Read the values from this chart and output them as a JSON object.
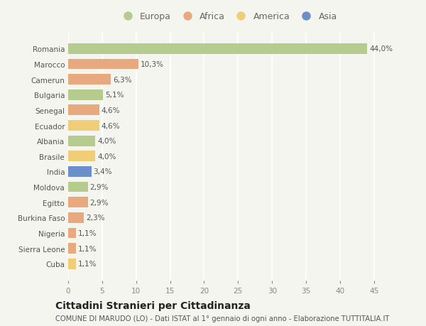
{
  "countries": [
    "Romania",
    "Marocco",
    "Camerun",
    "Bulgaria",
    "Senegal",
    "Ecuador",
    "Albania",
    "Brasile",
    "India",
    "Moldova",
    "Egitto",
    "Burkina Faso",
    "Nigeria",
    "Sierra Leone",
    "Cuba"
  ],
  "values": [
    44.0,
    10.3,
    6.3,
    5.1,
    4.6,
    4.6,
    4.0,
    4.0,
    3.4,
    2.9,
    2.9,
    2.3,
    1.1,
    1.1,
    1.1
  ],
  "labels": [
    "44,0%",
    "10,3%",
    "6,3%",
    "5,1%",
    "4,6%",
    "4,6%",
    "4,0%",
    "4,0%",
    "3,4%",
    "2,9%",
    "2,9%",
    "2,3%",
    "1,1%",
    "1,1%",
    "1,1%"
  ],
  "colors": [
    "#b5cc8e",
    "#e8a97e",
    "#e8a97e",
    "#b5cc8e",
    "#e8a97e",
    "#f0ce78",
    "#b5cc8e",
    "#f0ce78",
    "#6b8fc9",
    "#b5cc8e",
    "#e8a97e",
    "#e8a97e",
    "#e8a97e",
    "#e8a97e",
    "#f0ce78"
  ],
  "legend_labels": [
    "Europa",
    "Africa",
    "America",
    "Asia"
  ],
  "legend_colors": [
    "#b5cc8e",
    "#e8a97e",
    "#f0ce78",
    "#6b8fc9"
  ],
  "title": "Cittadini Stranieri per Cittadinanza",
  "subtitle": "COMUNE DI MARUDO (LO) - Dati ISTAT al 1° gennaio di ogni anno - Elaborazione TUTTITALIA.IT",
  "xlim": [
    0,
    47
  ],
  "xticks": [
    0,
    5,
    10,
    15,
    20,
    25,
    30,
    35,
    40,
    45
  ],
  "background_color": "#f5f5f0",
  "grid_color": "#ffffff",
  "bar_height": 0.68,
  "label_fontsize": 7.5,
  "tick_fontsize": 7.5,
  "ytick_fontsize": 7.5,
  "legend_fontsize": 9,
  "title_fontsize": 10,
  "subtitle_fontsize": 7.2
}
